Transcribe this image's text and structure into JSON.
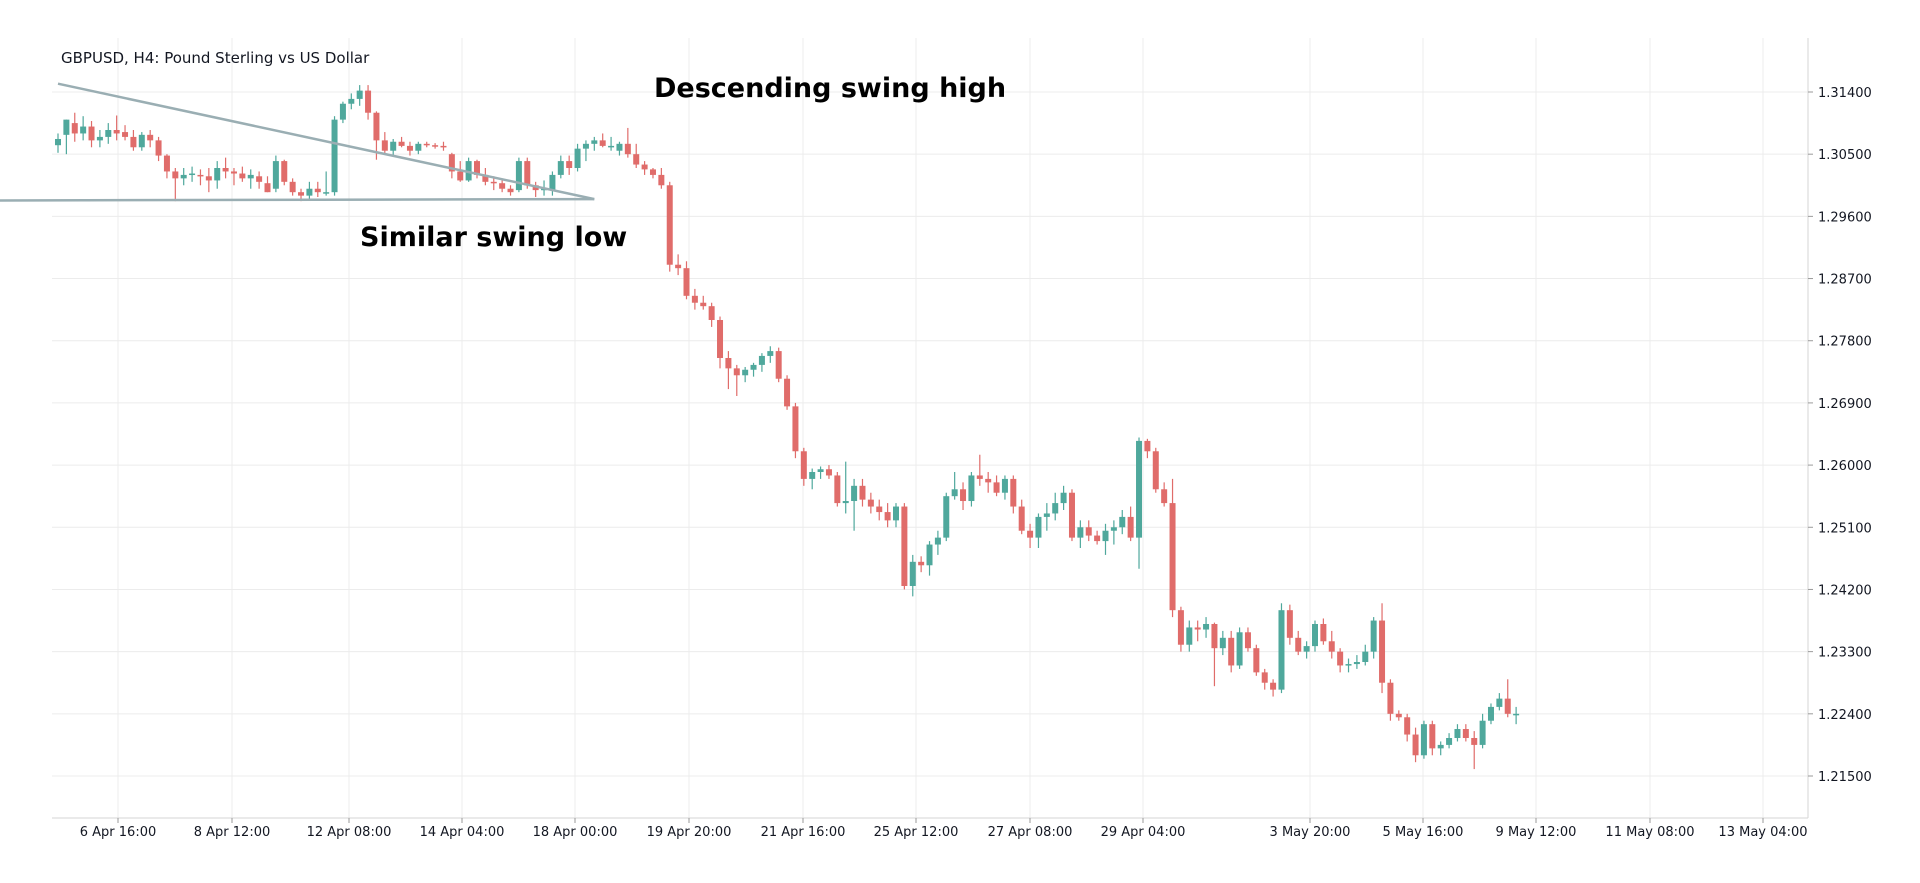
{
  "chart_data": {
    "type": "candlestick",
    "title": "GBPUSD, H4: Pound Sterling vs US Dollar",
    "ylim": [
      1.2075,
      1.3185
    ],
    "y_ticks": [
      "1.31400",
      "1.30500",
      "1.29600",
      "1.28700",
      "1.27800",
      "1.26900",
      "1.26000",
      "1.25100",
      "1.24200",
      "1.23300",
      "1.22400",
      "1.21500"
    ],
    "x_ticks": [
      "6 Apr 16:00",
      "8 Apr 12:00",
      "12 Apr 08:00",
      "14 Apr 04:00",
      "18 Apr 00:00",
      "19 Apr 20:00",
      "21 Apr 16:00",
      "25 Apr 12:00",
      "27 Apr 08:00",
      "29 Apr 04:00",
      "3 May 20:00",
      "5 May 16:00",
      "9 May 12:00",
      "11 May 08:00",
      "13 May 04:00"
    ],
    "grid": true,
    "up_color": "#4fa89c",
    "down_color": "#e06c6a",
    "annotations": [
      {
        "id": "descending",
        "text": "Descending swing high"
      },
      {
        "id": "similar",
        "text": "Similar swing low"
      }
    ],
    "trendlines": [
      {
        "id": "resistance",
        "start": {
          "bar": 0,
          "price": 1.3152
        },
        "end": {
          "bar": 64,
          "price": 1.2985
        }
      },
      {
        "id": "support",
        "start": {
          "bar": -8,
          "price": 1.2983
        },
        "end": {
          "bar": 64,
          "price": 1.2985
        }
      }
    ],
    "candles": [
      {
        "o": 1.3063,
        "h": 1.308,
        "l": 1.3052,
        "c": 1.3072
      },
      {
        "o": 1.3078,
        "h": 1.31,
        "l": 1.305,
        "c": 1.31
      },
      {
        "o": 1.3095,
        "h": 1.311,
        "l": 1.3068,
        "c": 1.308
      },
      {
        "o": 1.308,
        "h": 1.3105,
        "l": 1.307,
        "c": 1.309
      },
      {
        "o": 1.309,
        "h": 1.3098,
        "l": 1.306,
        "c": 1.307
      },
      {
        "o": 1.307,
        "h": 1.3085,
        "l": 1.306,
        "c": 1.3075
      },
      {
        "o": 1.3075,
        "h": 1.3095,
        "l": 1.3065,
        "c": 1.3085
      },
      {
        "o": 1.3085,
        "h": 1.3106,
        "l": 1.307,
        "c": 1.308
      },
      {
        "o": 1.3082,
        "h": 1.3092,
        "l": 1.307,
        "c": 1.3075
      },
      {
        "o": 1.3075,
        "h": 1.3085,
        "l": 1.3055,
        "c": 1.306
      },
      {
        "o": 1.306,
        "h": 1.3082,
        "l": 1.3055,
        "c": 1.3078
      },
      {
        "o": 1.3078,
        "h": 1.3085,
        "l": 1.306,
        "c": 1.307
      },
      {
        "o": 1.307,
        "h": 1.3075,
        "l": 1.304,
        "c": 1.3048
      },
      {
        "o": 1.3048,
        "h": 1.305,
        "l": 1.3015,
        "c": 1.3025
      },
      {
        "o": 1.3025,
        "h": 1.303,
        "l": 1.2982,
        "c": 1.3015
      },
      {
        "o": 1.3015,
        "h": 1.303,
        "l": 1.3005,
        "c": 1.302
      },
      {
        "o": 1.302,
        "h": 1.3032,
        "l": 1.301,
        "c": 1.3022
      },
      {
        "o": 1.302,
        "h": 1.3028,
        "l": 1.3005,
        "c": 1.3018
      },
      {
        "o": 1.3018,
        "h": 1.303,
        "l": 1.2995,
        "c": 1.3012
      },
      {
        "o": 1.3012,
        "h": 1.304,
        "l": 1.3,
        "c": 1.303
      },
      {
        "o": 1.303,
        "h": 1.3045,
        "l": 1.3015,
        "c": 1.3025
      },
      {
        "o": 1.3025,
        "h": 1.303,
        "l": 1.3005,
        "c": 1.3022
      },
      {
        "o": 1.3022,
        "h": 1.3032,
        "l": 1.301,
        "c": 1.3015
      },
      {
        "o": 1.3015,
        "h": 1.3028,
        "l": 1.3,
        "c": 1.302
      },
      {
        "o": 1.3018,
        "h": 1.3025,
        "l": 1.3,
        "c": 1.301
      },
      {
        "o": 1.3008,
        "h": 1.3018,
        "l": 1.2995,
        "c": 1.2995
      },
      {
        "o": 1.3,
        "h": 1.3048,
        "l": 1.2995,
        "c": 1.304
      },
      {
        "o": 1.304,
        "h": 1.3042,
        "l": 1.3005,
        "c": 1.301
      },
      {
        "o": 1.301,
        "h": 1.3015,
        "l": 1.299,
        "c": 1.2995
      },
      {
        "o": 1.2995,
        "h": 1.3,
        "l": 1.2982,
        "c": 1.299
      },
      {
        "o": 1.299,
        "h": 1.301,
        "l": 1.2985,
        "c": 1.3
      },
      {
        "o": 1.3,
        "h": 1.301,
        "l": 1.2988,
        "c": 1.2995
      },
      {
        "o": 1.2995,
        "h": 1.3025,
        "l": 1.299,
        "c": 1.2995
      },
      {
        "o": 1.2995,
        "h": 1.3105,
        "l": 1.299,
        "c": 1.31
      },
      {
        "o": 1.31,
        "h": 1.3126,
        "l": 1.3095,
        "c": 1.3123
      },
      {
        "o": 1.3123,
        "h": 1.3138,
        "l": 1.3115,
        "c": 1.313
      },
      {
        "o": 1.313,
        "h": 1.315,
        "l": 1.312,
        "c": 1.3142
      },
      {
        "o": 1.3142,
        "h": 1.315,
        "l": 1.31,
        "c": 1.311
      },
      {
        "o": 1.311,
        "h": 1.3112,
        "l": 1.3042,
        "c": 1.307
      },
      {
        "o": 1.307,
        "h": 1.3082,
        "l": 1.305,
        "c": 1.3055
      },
      {
        "o": 1.3055,
        "h": 1.3072,
        "l": 1.3048,
        "c": 1.3068
      },
      {
        "o": 1.3068,
        "h": 1.3075,
        "l": 1.306,
        "c": 1.3062
      },
      {
        "o": 1.3062,
        "h": 1.3068,
        "l": 1.3048,
        "c": 1.3055
      },
      {
        "o": 1.3055,
        "h": 1.3068,
        "l": 1.305,
        "c": 1.3065
      },
      {
        "o": 1.3065,
        "h": 1.3068,
        "l": 1.306,
        "c": 1.3063
      },
      {
        "o": 1.3063,
        "h": 1.3066,
        "l": 1.3058,
        "c": 1.3062
      },
      {
        "o": 1.3062,
        "h": 1.3068,
        "l": 1.3055,
        "c": 1.306
      },
      {
        "o": 1.305,
        "h": 1.3052,
        "l": 1.3015,
        "c": 1.3025
      },
      {
        "o": 1.3025,
        "h": 1.304,
        "l": 1.301,
        "c": 1.3012
      },
      {
        "o": 1.3012,
        "h": 1.3045,
        "l": 1.301,
        "c": 1.304
      },
      {
        "o": 1.304,
        "h": 1.3042,
        "l": 1.3015,
        "c": 1.302
      },
      {
        "o": 1.302,
        "h": 1.303,
        "l": 1.3005,
        "c": 1.301
      },
      {
        "o": 1.301,
        "h": 1.3018,
        "l": 1.2998,
        "c": 1.3008
      },
      {
        "o": 1.3008,
        "h": 1.3012,
        "l": 1.2995,
        "c": 1.3
      },
      {
        "o": 1.3,
        "h": 1.3005,
        "l": 1.299,
        "c": 1.2995
      },
      {
        "o": 1.2998,
        "h": 1.3045,
        "l": 1.2995,
        "c": 1.304
      },
      {
        "o": 1.304,
        "h": 1.3045,
        "l": 1.3,
        "c": 1.3005
      },
      {
        "o": 1.3005,
        "h": 1.301,
        "l": 1.2988,
        "c": 1.2998
      },
      {
        "o": 1.2998,
        "h": 1.3012,
        "l": 1.299,
        "c": 1.3
      },
      {
        "o": 1.2998,
        "h": 1.3025,
        "l": 1.299,
        "c": 1.302
      },
      {
        "o": 1.302,
        "h": 1.3048,
        "l": 1.3015,
        "c": 1.304
      },
      {
        "o": 1.304,
        "h": 1.3048,
        "l": 1.302,
        "c": 1.303
      },
      {
        "o": 1.303,
        "h": 1.3065,
        "l": 1.3025,
        "c": 1.3058
      },
      {
        "o": 1.3058,
        "h": 1.307,
        "l": 1.304,
        "c": 1.3065
      },
      {
        "o": 1.3065,
        "h": 1.3075,
        "l": 1.3055,
        "c": 1.307
      },
      {
        "o": 1.307,
        "h": 1.308,
        "l": 1.306,
        "c": 1.3062
      },
      {
        "o": 1.306,
        "h": 1.3075,
        "l": 1.3055,
        "c": 1.3062
      },
      {
        "o": 1.3055,
        "h": 1.3068,
        "l": 1.3048,
        "c": 1.3065
      },
      {
        "o": 1.3065,
        "h": 1.3088,
        "l": 1.3045,
        "c": 1.305
      },
      {
        "o": 1.305,
        "h": 1.3065,
        "l": 1.303,
        "c": 1.3035
      },
      {
        "o": 1.3035,
        "h": 1.304,
        "l": 1.302,
        "c": 1.3028
      },
      {
        "o": 1.3028,
        "h": 1.303,
        "l": 1.3015,
        "c": 1.302
      },
      {
        "o": 1.302,
        "h": 1.303,
        "l": 1.3,
        "c": 1.3005
      },
      {
        "o": 1.3005,
        "h": 1.301,
        "l": 1.288,
        "c": 1.289
      },
      {
        "o": 1.289,
        "h": 1.2905,
        "l": 1.2875,
        "c": 1.2885
      },
      {
        "o": 1.2885,
        "h": 1.2895,
        "l": 1.284,
        "c": 1.2845
      },
      {
        "o": 1.2845,
        "h": 1.2855,
        "l": 1.2825,
        "c": 1.2835
      },
      {
        "o": 1.2835,
        "h": 1.2845,
        "l": 1.2825,
        "c": 1.283
      },
      {
        "o": 1.283,
        "h": 1.2835,
        "l": 1.28,
        "c": 1.281
      },
      {
        "o": 1.281,
        "h": 1.2815,
        "l": 1.274,
        "c": 1.2755
      },
      {
        "o": 1.2755,
        "h": 1.2765,
        "l": 1.271,
        "c": 1.274
      },
      {
        "o": 1.274,
        "h": 1.2745,
        "l": 1.27,
        "c": 1.273
      },
      {
        "o": 1.273,
        "h": 1.2742,
        "l": 1.272,
        "c": 1.2738
      },
      {
        "o": 1.2738,
        "h": 1.2748,
        "l": 1.2728,
        "c": 1.2745
      },
      {
        "o": 1.2745,
        "h": 1.2762,
        "l": 1.2735,
        "c": 1.2758
      },
      {
        "o": 1.2758,
        "h": 1.2772,
        "l": 1.2748,
        "c": 1.2765
      },
      {
        "o": 1.2765,
        "h": 1.277,
        "l": 1.272,
        "c": 1.2725
      },
      {
        "o": 1.2725,
        "h": 1.273,
        "l": 1.268,
        "c": 1.2685
      },
      {
        "o": 1.2685,
        "h": 1.269,
        "l": 1.261,
        "c": 1.262
      },
      {
        "o": 1.262,
        "h": 1.2625,
        "l": 1.257,
        "c": 1.258
      },
      {
        "o": 1.258,
        "h": 1.2595,
        "l": 1.2565,
        "c": 1.259
      },
      {
        "o": 1.259,
        "h": 1.2598,
        "l": 1.258,
        "c": 1.2594
      },
      {
        "o": 1.2594,
        "h": 1.26,
        "l": 1.258,
        "c": 1.2585
      },
      {
        "o": 1.2585,
        "h": 1.259,
        "l": 1.254,
        "c": 1.2545
      },
      {
        "o": 1.2545,
        "h": 1.2605,
        "l": 1.253,
        "c": 1.2548
      },
      {
        "o": 1.2548,
        "h": 1.258,
        "l": 1.2505,
        "c": 1.257
      },
      {
        "o": 1.257,
        "h": 1.258,
        "l": 1.254,
        "c": 1.255
      },
      {
        "o": 1.255,
        "h": 1.256,
        "l": 1.253,
        "c": 1.254
      },
      {
        "o": 1.254,
        "h": 1.255,
        "l": 1.252,
        "c": 1.2532
      },
      {
        "o": 1.2532,
        "h": 1.2545,
        "l": 1.251,
        "c": 1.252
      },
      {
        "o": 1.252,
        "h": 1.2545,
        "l": 1.251,
        "c": 1.254
      },
      {
        "o": 1.254,
        "h": 1.2545,
        "l": 1.242,
        "c": 1.2425
      },
      {
        "o": 1.2425,
        "h": 1.247,
        "l": 1.241,
        "c": 1.246
      },
      {
        "o": 1.246,
        "h": 1.2468,
        "l": 1.2445,
        "c": 1.2455
      },
      {
        "o": 1.2455,
        "h": 1.249,
        "l": 1.244,
        "c": 1.2485
      },
      {
        "o": 1.2485,
        "h": 1.2505,
        "l": 1.247,
        "c": 1.2495
      },
      {
        "o": 1.2495,
        "h": 1.256,
        "l": 1.249,
        "c": 1.2555
      },
      {
        "o": 1.2555,
        "h": 1.259,
        "l": 1.255,
        "c": 1.2565
      },
      {
        "o": 1.2565,
        "h": 1.2575,
        "l": 1.2535,
        "c": 1.2548
      },
      {
        "o": 1.2548,
        "h": 1.259,
        "l": 1.254,
        "c": 1.2585
      },
      {
        "o": 1.2585,
        "h": 1.2615,
        "l": 1.257,
        "c": 1.258
      },
      {
        "o": 1.258,
        "h": 1.259,
        "l": 1.256,
        "c": 1.2575
      },
      {
        "o": 1.2575,
        "h": 1.2585,
        "l": 1.2555,
        "c": 1.256
      },
      {
        "o": 1.256,
        "h": 1.2585,
        "l": 1.255,
        "c": 1.258
      },
      {
        "o": 1.258,
        "h": 1.2585,
        "l": 1.253,
        "c": 1.254
      },
      {
        "o": 1.254,
        "h": 1.255,
        "l": 1.25,
        "c": 1.2505
      },
      {
        "o": 1.2505,
        "h": 1.2515,
        "l": 1.248,
        "c": 1.2495
      },
      {
        "o": 1.2495,
        "h": 1.253,
        "l": 1.248,
        "c": 1.2525
      },
      {
        "o": 1.2525,
        "h": 1.2545,
        "l": 1.2505,
        "c": 1.253
      },
      {
        "o": 1.253,
        "h": 1.256,
        "l": 1.252,
        "c": 1.2545
      },
      {
        "o": 1.2545,
        "h": 1.257,
        "l": 1.2535,
        "c": 1.256
      },
      {
        "o": 1.256,
        "h": 1.2565,
        "l": 1.249,
        "c": 1.2495
      },
      {
        "o": 1.2495,
        "h": 1.252,
        "l": 1.248,
        "c": 1.251
      },
      {
        "o": 1.251,
        "h": 1.252,
        "l": 1.249,
        "c": 1.2498
      },
      {
        "o": 1.2498,
        "h": 1.2505,
        "l": 1.2485,
        "c": 1.249
      },
      {
        "o": 1.249,
        "h": 1.2515,
        "l": 1.247,
        "c": 1.2505
      },
      {
        "o": 1.2505,
        "h": 1.252,
        "l": 1.2485,
        "c": 1.251
      },
      {
        "o": 1.251,
        "h": 1.2535,
        "l": 1.25,
        "c": 1.2525
      },
      {
        "o": 1.2525,
        "h": 1.254,
        "l": 1.249,
        "c": 1.2495
      },
      {
        "o": 1.2495,
        "h": 1.264,
        "l": 1.245,
        "c": 1.2635
      },
      {
        "o": 1.2635,
        "h": 1.2638,
        "l": 1.261,
        "c": 1.262
      },
      {
        "o": 1.262,
        "h": 1.2625,
        "l": 1.256,
        "c": 1.2565
      },
      {
        "o": 1.2565,
        "h": 1.2575,
        "l": 1.254,
        "c": 1.2545
      },
      {
        "o": 1.2545,
        "h": 1.258,
        "l": 1.238,
        "c": 1.239
      },
      {
        "o": 1.239,
        "h": 1.2395,
        "l": 1.233,
        "c": 1.234
      },
      {
        "o": 1.234,
        "h": 1.2375,
        "l": 1.233,
        "c": 1.2365
      },
      {
        "o": 1.2365,
        "h": 1.2375,
        "l": 1.2345,
        "c": 1.2362
      },
      {
        "o": 1.2362,
        "h": 1.238,
        "l": 1.235,
        "c": 1.237
      },
      {
        "o": 1.237,
        "h": 1.2372,
        "l": 1.228,
        "c": 1.2335
      },
      {
        "o": 1.2335,
        "h": 1.236,
        "l": 1.2325,
        "c": 1.235
      },
      {
        "o": 1.235,
        "h": 1.236,
        "l": 1.23,
        "c": 1.231
      },
      {
        "o": 1.231,
        "h": 1.2365,
        "l": 1.2305,
        "c": 1.2358
      },
      {
        "o": 1.2358,
        "h": 1.2365,
        "l": 1.233,
        "c": 1.2335
      },
      {
        "o": 1.2335,
        "h": 1.234,
        "l": 1.2295,
        "c": 1.23
      },
      {
        "o": 1.23,
        "h": 1.2305,
        "l": 1.2275,
        "c": 1.2285
      },
      {
        "o": 1.2285,
        "h": 1.229,
        "l": 1.2265,
        "c": 1.2275
      },
      {
        "o": 1.2275,
        "h": 1.24,
        "l": 1.227,
        "c": 1.239
      },
      {
        "o": 1.239,
        "h": 1.2398,
        "l": 1.234,
        "c": 1.235
      },
      {
        "o": 1.235,
        "h": 1.236,
        "l": 1.2325,
        "c": 1.233
      },
      {
        "o": 1.233,
        "h": 1.2345,
        "l": 1.232,
        "c": 1.2338
      },
      {
        "o": 1.2338,
        "h": 1.2375,
        "l": 1.233,
        "c": 1.237
      },
      {
        "o": 1.237,
        "h": 1.2378,
        "l": 1.234,
        "c": 1.2345
      },
      {
        "o": 1.2345,
        "h": 1.236,
        "l": 1.232,
        "c": 1.233
      },
      {
        "o": 1.233,
        "h": 1.2335,
        "l": 1.23,
        "c": 1.231
      },
      {
        "o": 1.231,
        "h": 1.232,
        "l": 1.23,
        "c": 1.2312
      },
      {
        "o": 1.2312,
        "h": 1.2325,
        "l": 1.2305,
        "c": 1.2315
      },
      {
        "o": 1.2315,
        "h": 1.234,
        "l": 1.231,
        "c": 1.233
      },
      {
        "o": 1.233,
        "h": 1.238,
        "l": 1.232,
        "c": 1.2375
      },
      {
        "o": 1.2375,
        "h": 1.24,
        "l": 1.227,
        "c": 1.2285
      },
      {
        "o": 1.2285,
        "h": 1.229,
        "l": 1.223,
        "c": 1.224
      },
      {
        "o": 1.224,
        "h": 1.2245,
        "l": 1.223,
        "c": 1.2235
      },
      {
        "o": 1.2235,
        "h": 1.224,
        "l": 1.22,
        "c": 1.221
      },
      {
        "o": 1.221,
        "h": 1.222,
        "l": 1.217,
        "c": 1.218
      },
      {
        "o": 1.218,
        "h": 1.223,
        "l": 1.2175,
        "c": 1.2225
      },
      {
        "o": 1.2225,
        "h": 1.223,
        "l": 1.218,
        "c": 1.219
      },
      {
        "o": 1.219,
        "h": 1.22,
        "l": 1.218,
        "c": 1.2195
      },
      {
        "o": 1.2195,
        "h": 1.2212,
        "l": 1.219,
        "c": 1.2205
      },
      {
        "o": 1.2205,
        "h": 1.2225,
        "l": 1.22,
        "c": 1.2218
      },
      {
        "o": 1.2218,
        "h": 1.2225,
        "l": 1.22,
        "c": 1.2205
      },
      {
        "o": 1.2205,
        "h": 1.2215,
        "l": 1.216,
        "c": 1.2195
      },
      {
        "o": 1.2195,
        "h": 1.224,
        "l": 1.219,
        "c": 1.223
      },
      {
        "o": 1.223,
        "h": 1.2255,
        "l": 1.2225,
        "c": 1.225
      },
      {
        "o": 1.225,
        "h": 1.227,
        "l": 1.2245,
        "c": 1.2262
      },
      {
        "o": 1.2262,
        "h": 1.229,
        "l": 1.2235,
        "c": 1.224
      },
      {
        "o": 1.224,
        "h": 1.225,
        "l": 1.2225,
        "c": 1.224
      }
    ]
  }
}
